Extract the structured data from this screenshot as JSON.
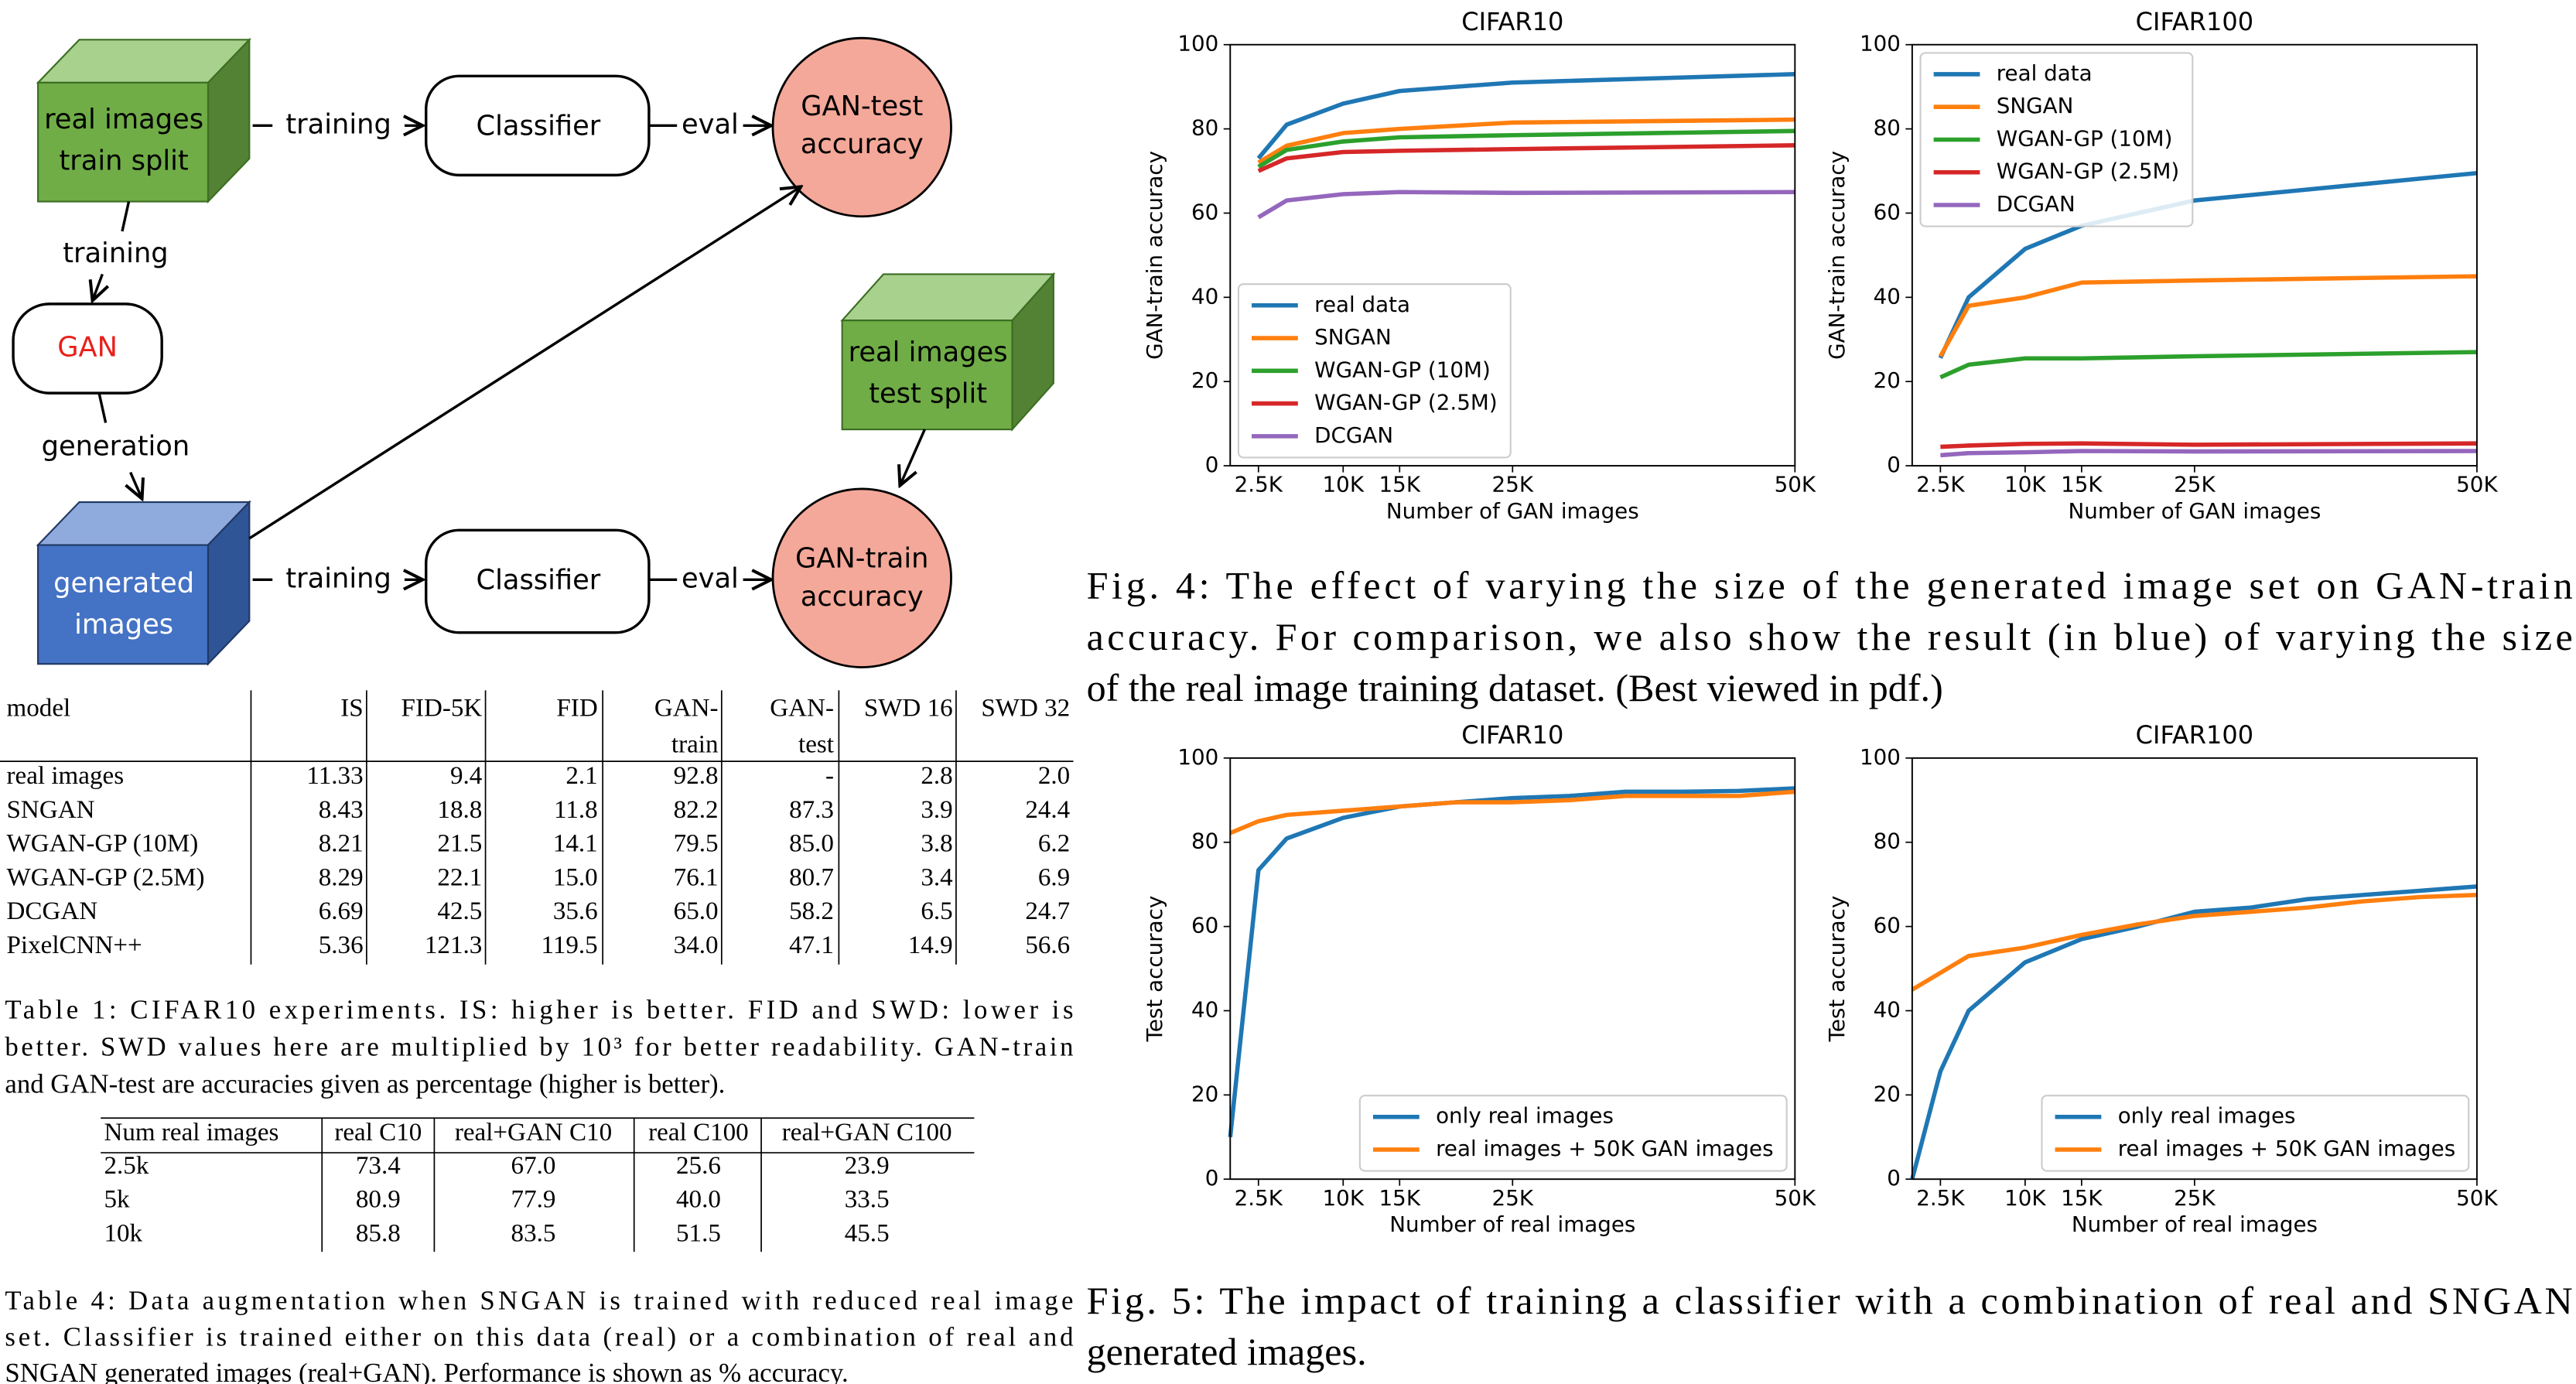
{
  "diagram": {
    "real_train": [
      "real images",
      "train split"
    ],
    "classifier_top": "Classifier",
    "gan_test": [
      "GAN-test",
      "accuracy"
    ],
    "gan": "GAN",
    "generated": [
      "generated",
      "images"
    ],
    "classifier_bottom": "Classifier",
    "gan_train": [
      "GAN-train",
      "accuracy"
    ],
    "real_test": [
      "real images",
      "test split"
    ],
    "edge_labels": [
      "training",
      "eval",
      "training",
      "generation",
      "training",
      "eval"
    ]
  },
  "table1": {
    "header": [
      [
        "model"
      ],
      [
        "IS"
      ],
      [
        "FID-5K"
      ],
      [
        "FID"
      ],
      [
        "GAN-",
        "train"
      ],
      [
        "GAN-",
        "test"
      ],
      [
        "SWD 16"
      ],
      [
        "SWD 32"
      ]
    ],
    "rows": [
      [
        "real images",
        "11.33",
        "9.4",
        "2.1",
        "92.8",
        "-",
        "2.8",
        "2.0"
      ],
      [
        "SNGAN",
        "8.43",
        "18.8",
        "11.8",
        "82.2",
        "87.3",
        "3.9",
        "24.4"
      ],
      [
        "WGAN-GP (10M)",
        "8.21",
        "21.5",
        "14.1",
        "79.5",
        "85.0",
        "3.8",
        "6.2"
      ],
      [
        "WGAN-GP (2.5M)",
        "8.29",
        "22.1",
        "15.0",
        "76.1",
        "80.7",
        "3.4",
        "6.9"
      ],
      [
        "DCGAN",
        "6.69",
        "42.5",
        "35.6",
        "65.0",
        "58.2",
        "6.5",
        "24.7"
      ],
      [
        "PixelCNN++",
        "5.36",
        "121.3",
        "119.5",
        "34.0",
        "47.1",
        "14.9",
        "56.6"
      ]
    ],
    "caption": [
      "Table 1: CIFAR10 experiments. IS: higher is better. FID and SWD: lower is",
      "better. SWD values here are multiplied by 10³ for better readability. GAN-train",
      "and GAN-test are accuracies given as percentage (higher is better)."
    ]
  },
  "table4": {
    "header": [
      "Num real images",
      "real C10",
      "real+GAN C10",
      "real C100",
      "real+GAN C100"
    ],
    "rows": [
      [
        "2.5k",
        "73.4",
        "67.0",
        "25.6",
        "23.9"
      ],
      [
        "5k",
        "80.9",
        "77.9",
        "40.0",
        "33.5"
      ],
      [
        "10k",
        "85.8",
        "83.5",
        "51.5",
        "45.5"
      ]
    ],
    "caption": [
      "Table 4: Data augmentation when SNGAN is trained with reduced real image",
      "set. Classifier is trained either on this data (real) or a combination of real and",
      "SNGAN generated images (real+GAN). Performance is shown as % accuracy."
    ]
  },
  "chart_data": [
    {
      "type": "line",
      "title": "CIFAR10",
      "xlabel": "Number of GAN images",
      "ylabel": "GAN-train accuracy",
      "x": [
        2500,
        5000,
        10000,
        15000,
        25000,
        50000
      ],
      "series": [
        {
          "name": "real data",
          "color": "#1f77b4",
          "values": [
            73,
            81,
            86,
            89,
            91,
            93
          ]
        },
        {
          "name": "SNGAN",
          "color": "#ff7f0e",
          "values": [
            72,
            76,
            79,
            80,
            81.5,
            82.2
          ]
        },
        {
          "name": "WGAN-GP (10M)",
          "color": "#2ca02c",
          "values": [
            71,
            75,
            77,
            78,
            78.5,
            79.5
          ]
        },
        {
          "name": "WGAN-GP (2.5M)",
          "color": "#d62728",
          "values": [
            70,
            73,
            74.5,
            74.8,
            75.2,
            76.1
          ]
        },
        {
          "name": "DCGAN",
          "color": "#9467bd",
          "values": [
            59,
            63,
            64.5,
            65,
            64.8,
            65
          ]
        }
      ],
      "xlim": [
        0,
        50000
      ],
      "ylim": [
        0,
        100
      ],
      "xticks": [
        {
          "value": 2500,
          "label": "2.5K"
        },
        {
          "value": 10000,
          "label": "10K"
        },
        {
          "value": 15000,
          "label": "15K"
        },
        {
          "value": 25000,
          "label": "25K"
        },
        {
          "value": 50000,
          "label": "50K"
        }
      ],
      "yticks": [
        0,
        20,
        40,
        60,
        80,
        100
      ],
      "legend": "lower left"
    },
    {
      "type": "line",
      "title": "CIFAR100",
      "xlabel": "Number of GAN images",
      "ylabel": "GAN-train accuracy",
      "x": [
        2500,
        5000,
        10000,
        15000,
        25000,
        50000
      ],
      "series": [
        {
          "name": "real data",
          "color": "#1f77b4",
          "values": [
            25.6,
            40,
            51.5,
            57,
            63,
            69.5
          ]
        },
        {
          "name": "SNGAN",
          "color": "#ff7f0e",
          "values": [
            26,
            38,
            40,
            43.5,
            44,
            45
          ]
        },
        {
          "name": "WGAN-GP (10M)",
          "color": "#2ca02c",
          "values": [
            21,
            24,
            25.5,
            25.5,
            26,
            27
          ]
        },
        {
          "name": "WGAN-GP (2.5M)",
          "color": "#d62728",
          "values": [
            4.5,
            4.8,
            5.2,
            5.3,
            5,
            5.3
          ]
        },
        {
          "name": "DCGAN",
          "color": "#9467bd",
          "values": [
            2.5,
            3,
            3.2,
            3.5,
            3.4,
            3.5
          ]
        }
      ],
      "xlim": [
        0,
        50000
      ],
      "ylim": [
        0,
        100
      ],
      "xticks": [
        {
          "value": 2500,
          "label": "2.5K"
        },
        {
          "value": 10000,
          "label": "10K"
        },
        {
          "value": 15000,
          "label": "15K"
        },
        {
          "value": 25000,
          "label": "25K"
        },
        {
          "value": 50000,
          "label": "50K"
        }
      ],
      "yticks": [
        0,
        20,
        40,
        60,
        80,
        100
      ],
      "legend": "upper left"
    },
    {
      "type": "line",
      "title": "CIFAR10",
      "xlabel": "Number of real images",
      "ylabel": "Test accuracy",
      "x": [
        0,
        2500,
        5000,
        10000,
        15000,
        20000,
        25000,
        30000,
        35000,
        40000,
        45000,
        50000
      ],
      "series": [
        {
          "name": "only real images",
          "color": "#1f77b4",
          "values": [
            10,
            73.4,
            80.9,
            85.8,
            88.5,
            89.5,
            90.5,
            91,
            92,
            92,
            92.2,
            92.8
          ]
        },
        {
          "name": "real images + 50K GAN images",
          "color": "#ff7f0e",
          "values": [
            82.2,
            85,
            86.5,
            87.5,
            88.5,
            89.5,
            89.5,
            90,
            91,
            91,
            91,
            92
          ]
        }
      ],
      "xlim": [
        0,
        50000
      ],
      "ylim": [
        0,
        100
      ],
      "xticks": [
        {
          "value": 2500,
          "label": "2.5K"
        },
        {
          "value": 10000,
          "label": "10K"
        },
        {
          "value": 15000,
          "label": "15K"
        },
        {
          "value": 25000,
          "label": "25K"
        },
        {
          "value": 50000,
          "label": "50K"
        }
      ],
      "yticks": [
        0,
        20,
        40,
        60,
        80,
        100
      ],
      "legend": "lower right"
    },
    {
      "type": "line",
      "title": "CIFAR100",
      "xlabel": "Number of real images",
      "ylabel": "Test accuracy",
      "x": [
        0,
        2500,
        5000,
        10000,
        15000,
        20000,
        25000,
        30000,
        35000,
        40000,
        45000,
        50000
      ],
      "series": [
        {
          "name": "only real images",
          "color": "#1f77b4",
          "values": [
            0,
            25.6,
            40,
            51.5,
            57,
            60,
            63.5,
            64.5,
            66.5,
            67.5,
            68.5,
            69.5
          ]
        },
        {
          "name": "real images + 50K GAN images",
          "color": "#ff7f0e",
          "values": [
            45,
            49,
            53,
            55,
            58,
            60.5,
            62.5,
            63.5,
            64.5,
            66,
            67,
            67.5
          ]
        }
      ],
      "xlim": [
        0,
        50000
      ],
      "ylim": [
        0,
        100
      ],
      "xticks": [
        {
          "value": 2500,
          "label": "2.5K"
        },
        {
          "value": 10000,
          "label": "10K"
        },
        {
          "value": 15000,
          "label": "15K"
        },
        {
          "value": 25000,
          "label": "25K"
        },
        {
          "value": 50000,
          "label": "50K"
        }
      ],
      "yticks": [
        0,
        20,
        40,
        60,
        80,
        100
      ],
      "legend": "lower right"
    }
  ],
  "fig4_caption": [
    "Fig. 4: The effect of varying the size of the generated image set on GAN-train",
    "accuracy. For comparison, we also show the result (in blue) of varying the size",
    "of the real image training dataset. (Best viewed in pdf.)"
  ],
  "fig5_caption": [
    "Fig. 5: The impact of training a classifier with a combination of real and SNGAN",
    "generated images."
  ]
}
